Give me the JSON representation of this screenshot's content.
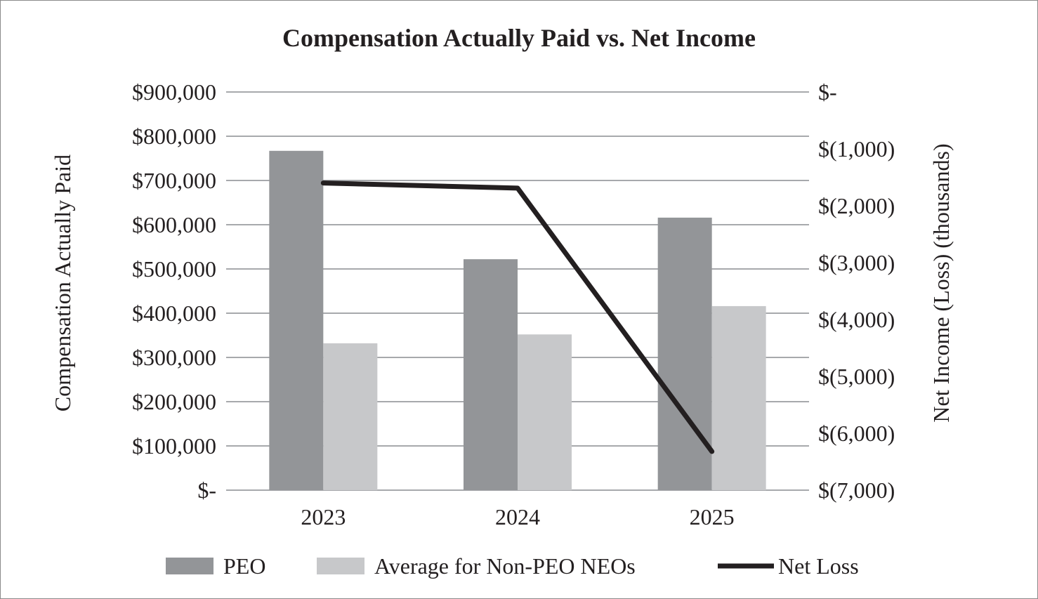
{
  "chart_data": {
    "type": "bar",
    "title": "Compensation Actually Paid vs. Net Income",
    "ylabel": "Compensation Actually Paid",
    "y2label": "Net Income (Loss) (thousands)",
    "categories": [
      "2023",
      "2024",
      "2025"
    ],
    "ylim": [
      0,
      900000
    ],
    "y2lim": [
      -7000,
      0
    ],
    "yticks": [
      "$-",
      "$100,000",
      "$200,000",
      "$300,000",
      "$400,000",
      "$500,000",
      "$600,000",
      "$700,000",
      "$800,000",
      "$900,000"
    ],
    "y2ticks": [
      "$-",
      "$(1,000)",
      "$(2,000)",
      "$(3,000)",
      "$(4,000)",
      "$(5,000)",
      "$(6,000)",
      "$(7,000)"
    ],
    "grid": true,
    "legend_position": "bottom",
    "series": [
      {
        "name": "PEO",
        "type": "bar",
        "axis": "left",
        "color": "#939598",
        "values": [
          767000,
          522000,
          616000
        ]
      },
      {
        "name": "Average for Non-PEO NEOs",
        "type": "bar",
        "axis": "left",
        "color": "#c7c8ca",
        "values": [
          332000,
          352000,
          416000
        ]
      },
      {
        "name": "Net Loss",
        "type": "line",
        "axis": "right",
        "color": "#231f20",
        "values": [
          -1600,
          -1690,
          -6320
        ]
      }
    ]
  }
}
